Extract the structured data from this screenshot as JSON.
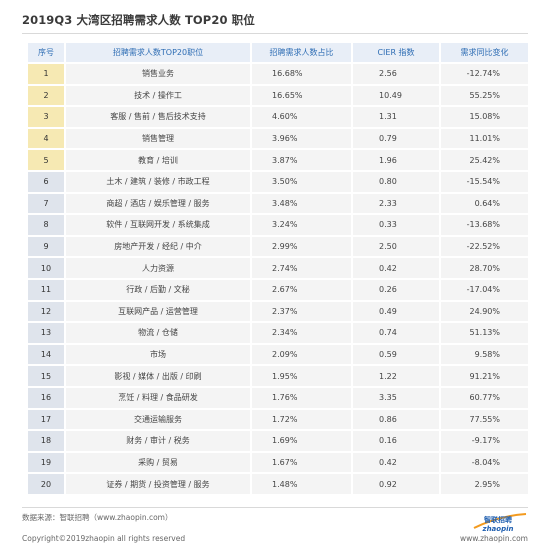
{
  "title": "2019Q3 大湾区招聘需求人数 TOP20 职位",
  "table": {
    "headers": [
      "序号",
      "招聘需求人数TOP20职位",
      "招聘需求人数占比",
      "CIER 指数",
      "需求同比变化"
    ],
    "rows": [
      {
        "rank": "1",
        "position": "销售业务",
        "share": "16.68%",
        "cier": "2.56",
        "yoy": "-12.74%"
      },
      {
        "rank": "2",
        "position": "技术 / 操作工",
        "share": "16.65%",
        "cier": "10.49",
        "yoy": "55.25%"
      },
      {
        "rank": "3",
        "position": "客服 / 售前 / 售后技术支持",
        "share": "4.60%",
        "cier": "1.31",
        "yoy": "15.08%"
      },
      {
        "rank": "4",
        "position": "销售管理",
        "share": "3.96%",
        "cier": "0.79",
        "yoy": "11.01%"
      },
      {
        "rank": "5",
        "position": "教育 / 培训",
        "share": "3.87%",
        "cier": "1.96",
        "yoy": "25.42%"
      },
      {
        "rank": "6",
        "position": "土木 / 建筑 / 装修 / 市政工程",
        "share": "3.50%",
        "cier": "0.80",
        "yoy": "-15.54%"
      },
      {
        "rank": "7",
        "position": "商超 / 酒店 / 娱乐管理 / 服务",
        "share": "3.48%",
        "cier": "2.33",
        "yoy": "0.64%"
      },
      {
        "rank": "8",
        "position": "软件 / 互联网开发 / 系统集成",
        "share": "3.24%",
        "cier": "0.33",
        "yoy": "-13.68%"
      },
      {
        "rank": "9",
        "position": "房地产开发 / 经纪 / 中介",
        "share": "2.99%",
        "cier": "2.50",
        "yoy": "-22.52%"
      },
      {
        "rank": "10",
        "position": "人力资源",
        "share": "2.74%",
        "cier": "0.42",
        "yoy": "28.70%"
      },
      {
        "rank": "11",
        "position": "行政 / 后勤 / 文秘",
        "share": "2.67%",
        "cier": "0.26",
        "yoy": "-17.04%"
      },
      {
        "rank": "12",
        "position": "互联网产品 / 运营管理",
        "share": "2.37%",
        "cier": "0.49",
        "yoy": "24.90%"
      },
      {
        "rank": "13",
        "position": "物流 / 仓储",
        "share": "2.34%",
        "cier": "0.74",
        "yoy": "51.13%"
      },
      {
        "rank": "14",
        "position": "市场",
        "share": "2.09%",
        "cier": "0.59",
        "yoy": "9.58%"
      },
      {
        "rank": "15",
        "position": "影视 / 媒体 / 出版 / 印刷",
        "share": "1.95%",
        "cier": "1.22",
        "yoy": "91.21%"
      },
      {
        "rank": "16",
        "position": "烹饪 / 料理 / 食品研发",
        "share": "1.76%",
        "cier": "3.35",
        "yoy": "60.77%"
      },
      {
        "rank": "17",
        "position": "交通运输服务",
        "share": "1.72%",
        "cier": "0.86",
        "yoy": "77.55%"
      },
      {
        "rank": "18",
        "position": "财务 / 审计 / 税务",
        "share": "1.69%",
        "cier": "0.16",
        "yoy": "-9.17%"
      },
      {
        "rank": "19",
        "position": "采购 / 贸易",
        "share": "1.67%",
        "cier": "0.42",
        "yoy": "-8.04%"
      },
      {
        "rank": "20",
        "position": "证券 / 期货 / 投资管理 / 服务",
        "share": "1.48%",
        "cier": "0.92",
        "yoy": "2.95%"
      }
    ]
  },
  "footer": {
    "source": "数据来源：智联招聘（www.zhaopin.com）",
    "copyright": "Copyright©2019zhaopin all rights reserved",
    "logo_text": "智联招聘",
    "logo_sub": "zhaopin",
    "site": "www.zhaopin.com"
  },
  "colors": {
    "header_bg": "#e8eef7",
    "header_text": "#2e6db4",
    "rank_bg": "#dfe4ec",
    "rank_highlight": "#f6e9b3",
    "cell_bg": "#f4f4f4",
    "logo_blue": "#1f5fb0",
    "logo_orange": "#f39a1e"
  }
}
